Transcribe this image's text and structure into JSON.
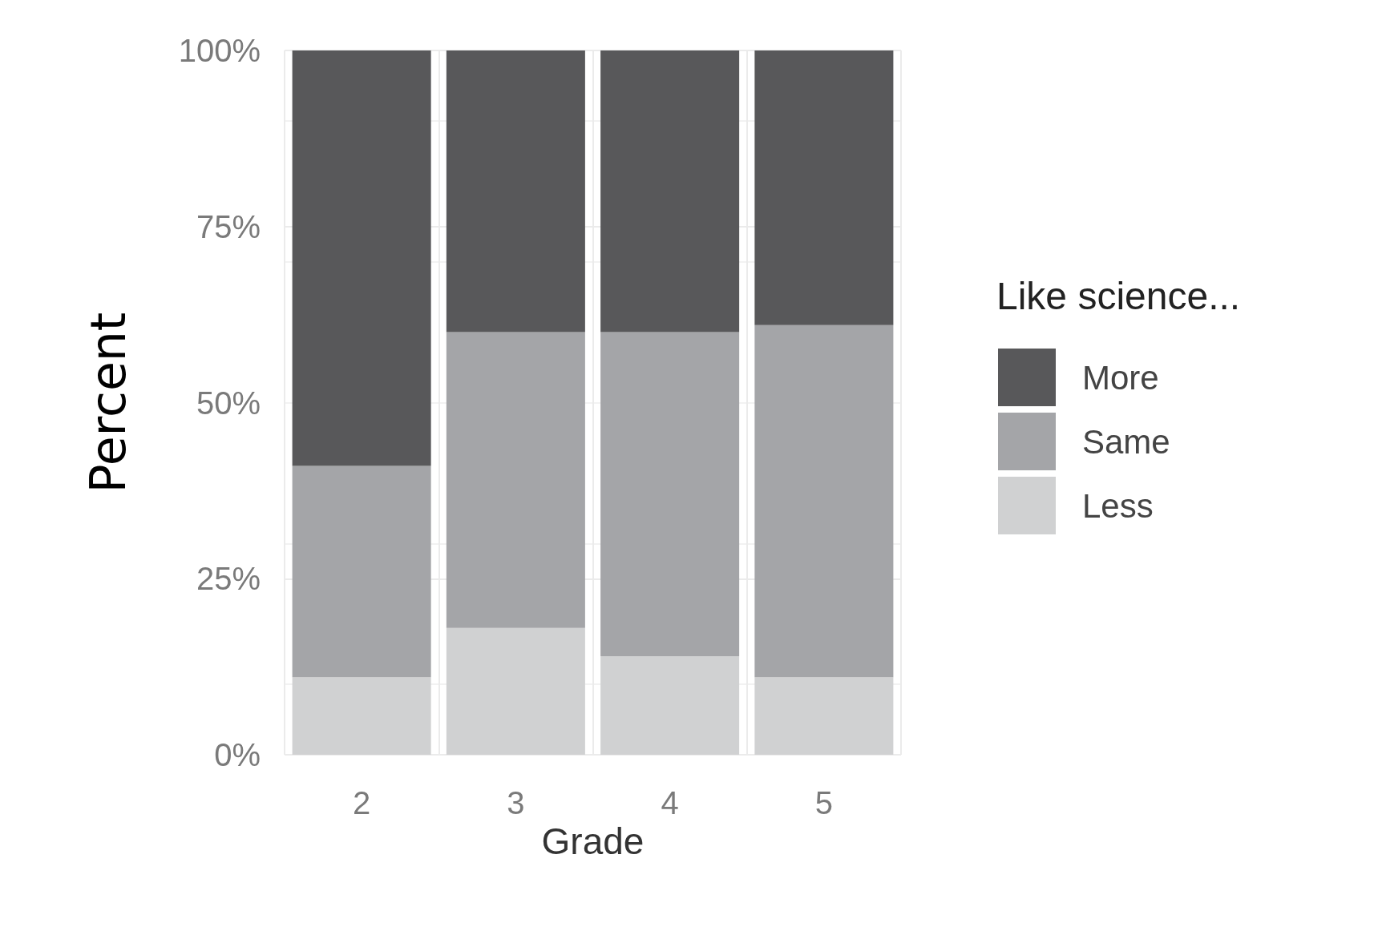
{
  "chart_data": {
    "type": "bar",
    "xlabel": "Grade",
    "ylabel": "Percent",
    "legend_title": "Like science...",
    "categories": [
      "2",
      "3",
      "4",
      "5"
    ],
    "stacked": true,
    "series": [
      {
        "name": "Less",
        "color": "#d0d1d2",
        "values": [
          11,
          18,
          14,
          11
        ]
      },
      {
        "name": "Same",
        "color": "#a4a5a8",
        "values": [
          30,
          42,
          46,
          50
        ]
      },
      {
        "name": "More",
        "color": "#58585a",
        "values": [
          59,
          40,
          40,
          39
        ]
      }
    ],
    "ylim": [
      0,
      100
    ],
    "yticks": [
      {
        "value": 0,
        "label": "0%"
      },
      {
        "value": 25,
        "label": "25%"
      },
      {
        "value": 50,
        "label": "50%"
      },
      {
        "value": 75,
        "label": "75%"
      },
      {
        "value": 100,
        "label": "100%"
      }
    ],
    "grid": true,
    "legend": "right"
  }
}
